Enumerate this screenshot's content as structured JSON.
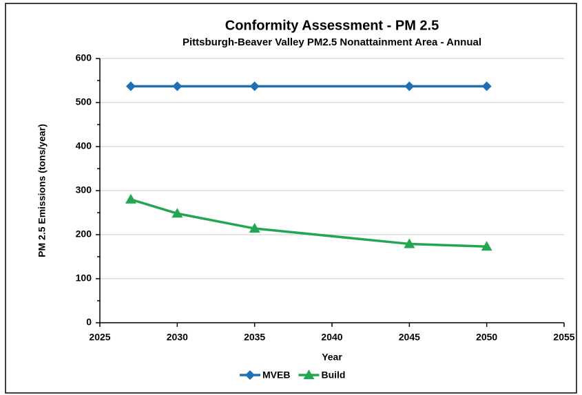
{
  "chart_data": {
    "type": "line",
    "title": "Conformity Assessment - PM 2.5",
    "subtitle": "Pittsburgh-Beaver Valley PM2.5 Nonattainment Area - Annual",
    "x_label": "Year",
    "y_label": "PM 2.5 Emissions (tons/year)",
    "x": [
      2027,
      2030,
      2035,
      2045,
      2050
    ],
    "series": [
      {
        "name": "MVEB",
        "color": "#1f6fb5",
        "marker": "diamond",
        "values": [
          537,
          537,
          537,
          537,
          537
        ]
      },
      {
        "name": "Build",
        "color": "#22a651",
        "marker": "triangle",
        "values": [
          280,
          248,
          214,
          179,
          173
        ]
      }
    ],
    "xlim": [
      2025,
      2055
    ],
    "xticks": [
      2025,
      2030,
      2035,
      2040,
      2045,
      2050,
      2055
    ],
    "ylim": [
      0,
      600
    ],
    "yticks": [
      0,
      100,
      200,
      300,
      400,
      500,
      600
    ],
    "grid": true,
    "legend": "bottom"
  }
}
